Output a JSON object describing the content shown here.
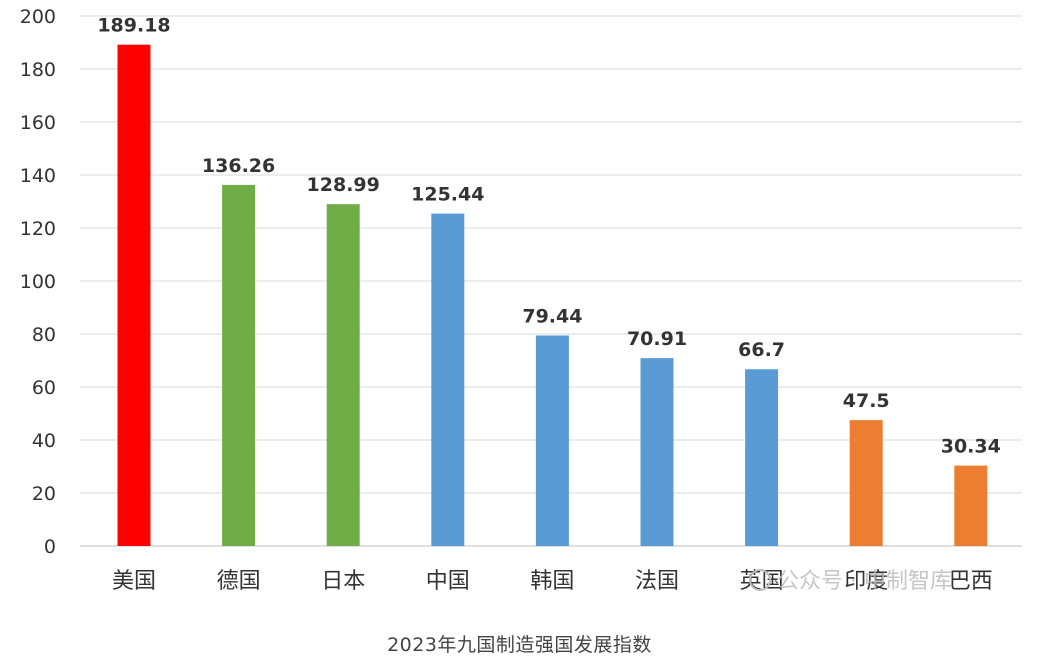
{
  "chart_data": {
    "type": "bar",
    "title": "",
    "xlabel": "",
    "ylabel": "",
    "ylim": [
      0,
      200
    ],
    "yticks": [
      0,
      20,
      40,
      60,
      80,
      100,
      120,
      140,
      160,
      180,
      200
    ],
    "grid": true,
    "legend": "none",
    "categories": [
      "美国",
      "德国",
      "日本",
      "中国",
      "韩国",
      "法国",
      "英国",
      "印度",
      "巴西"
    ],
    "values": [
      189.18,
      136.26,
      128.99,
      125.44,
      79.44,
      70.91,
      66.7,
      47.5,
      30.34
    ],
    "value_labels": [
      "189.18",
      "136.26",
      "128.99",
      "125.44",
      "79.44",
      "70.91",
      "66.7",
      "47.5",
      "30.34"
    ],
    "bar_colors": [
      "#ff0000",
      "#70ad47",
      "#70ad47",
      "#5b9bd5",
      "#5b9bd5",
      "#5b9bd5",
      "#5b9bd5",
      "#ed7d31",
      "#ed7d31"
    ]
  },
  "caption": "2023年九国制造强国发展指数",
  "watermark": "公众号 · 中制智库",
  "colors": {
    "grid": "#d9d9d9",
    "axis": "#bfbfbf",
    "text": "#333333"
  }
}
